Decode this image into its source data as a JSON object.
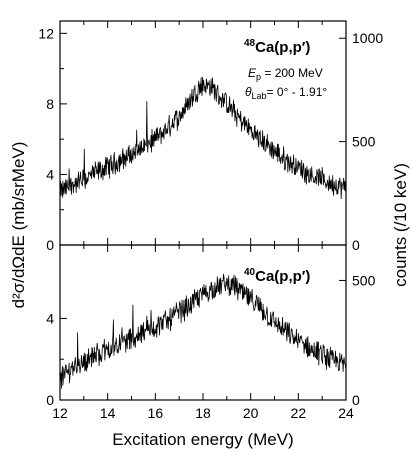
{
  "figure": {
    "x_axis": {
      "label": "Excitation energy (MeV)",
      "range": [
        12,
        24
      ],
      "ticks": [
        "12",
        "14",
        "16",
        "18",
        "20",
        "22",
        "24"
      ]
    },
    "left_axis_label": "d²σ/dΩdE (mb/srMeV)",
    "right_axis_label": "counts (/10 keV)"
  },
  "chart_data": [
    {
      "type": "line",
      "panel": "top",
      "annotation": {
        "mass": "48",
        "reaction": "Ca(p,p′)",
        "energy_symbol": "E",
        "energy_sub": "p",
        "energy_value": " = 200 MeV",
        "angle_symbol": "θ",
        "angle_sub": "Lab",
        "angle_value": "= 0° - 1.91°"
      },
      "xlim": [
        12,
        24
      ],
      "ylim": [
        0,
        12.7
      ],
      "y_ticks": [
        0,
        4,
        8,
        12
      ],
      "y_tick_labels": [
        "0",
        "4",
        "8",
        "12"
      ],
      "right_axis": {
        "ticks": [
          0,
          500,
          1000
        ],
        "labels": [
          "0",
          "500",
          "1000"
        ],
        "counts_per_unit": 85.3
      },
      "x": [
        12.0,
        12.5,
        13.0,
        13.5,
        14.0,
        14.5,
        15.0,
        15.5,
        16.0,
        16.5,
        17.0,
        17.5,
        17.8,
        18.0,
        18.3,
        18.6,
        19.0,
        19.5,
        20.0,
        20.5,
        21.0,
        21.5,
        22.0,
        22.5,
        23.0,
        23.5,
        24.0
      ],
      "y": [
        3.0,
        3.4,
        3.7,
        4.1,
        4.4,
        4.8,
        5.1,
        5.6,
        6.0,
        6.6,
        7.3,
        8.3,
        8.9,
        9.1,
        9.0,
        8.6,
        8.0,
        7.2,
        6.5,
        5.9,
        5.3,
        4.8,
        4.4,
        4.0,
        3.7,
        3.4,
        3.2
      ],
      "noise_amplitude": 0.55
    },
    {
      "type": "line",
      "panel": "bottom",
      "annotation": {
        "mass": "40",
        "reaction": "Ca(p,p′)"
      },
      "xlim": [
        12,
        24
      ],
      "ylim": [
        0,
        7.6
      ],
      "y_ticks": [
        0,
        4
      ],
      "y_tick_labels": [
        "0",
        "4"
      ],
      "right_axis": {
        "ticks": [
          0,
          500
        ],
        "labels": [
          "0",
          "500"
        ],
        "counts_per_unit": 85.3
      },
      "x": [
        12.0,
        12.5,
        13.0,
        13.5,
        14.0,
        14.5,
        15.0,
        15.5,
        16.0,
        16.5,
        17.0,
        17.5,
        18.0,
        18.5,
        19.0,
        19.3,
        19.6,
        20.0,
        20.5,
        21.0,
        21.5,
        22.0,
        22.5,
        23.0,
        23.5,
        24.0
      ],
      "y": [
        1.0,
        1.6,
        1.9,
        2.2,
        2.5,
        2.8,
        3.0,
        3.3,
        3.6,
        3.9,
        4.3,
        4.7,
        5.2,
        5.5,
        5.7,
        5.6,
        5.3,
        4.9,
        4.4,
        3.8,
        3.3,
        2.9,
        2.5,
        2.2,
        1.9,
        1.7
      ],
      "noise_amplitude": 0.5
    }
  ]
}
